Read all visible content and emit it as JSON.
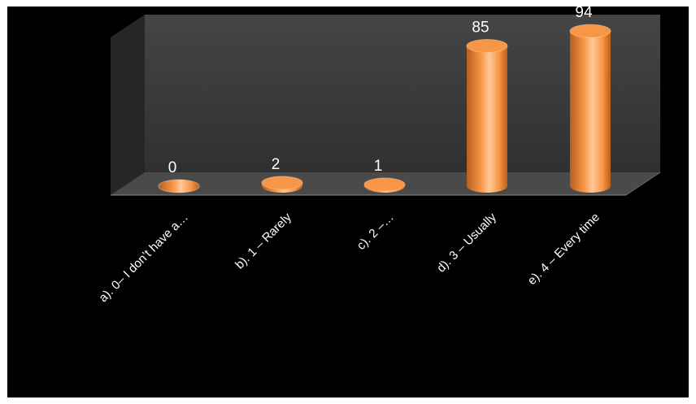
{
  "chart_data": {
    "type": "bar",
    "style": "3d-cylinder",
    "title": "",
    "xlabel": "",
    "ylabel": "",
    "categories": [
      "a). 0– I don’t have a…",
      "b). 1 – Rarely",
      "c). 2 –…",
      "d). 3 – Usually",
      "e). 4 – Every time"
    ],
    "values": [
      0,
      2,
      1,
      85,
      94
    ],
    "value_labels": [
      "0",
      "2",
      "1",
      "85",
      "94"
    ],
    "ylim": [
      0,
      100
    ],
    "grid": false,
    "legend": "none",
    "colors": {
      "bar": "#f79646",
      "bar_highlight": "#ffc89a",
      "bar_shadow": "#b85e1c",
      "background": "#000000",
      "frame": "#ffffff",
      "back_wall": "#3a3a3a",
      "side_wall": "#262626",
      "floor": "#4a4a4a",
      "text": "#ffffff"
    }
  }
}
